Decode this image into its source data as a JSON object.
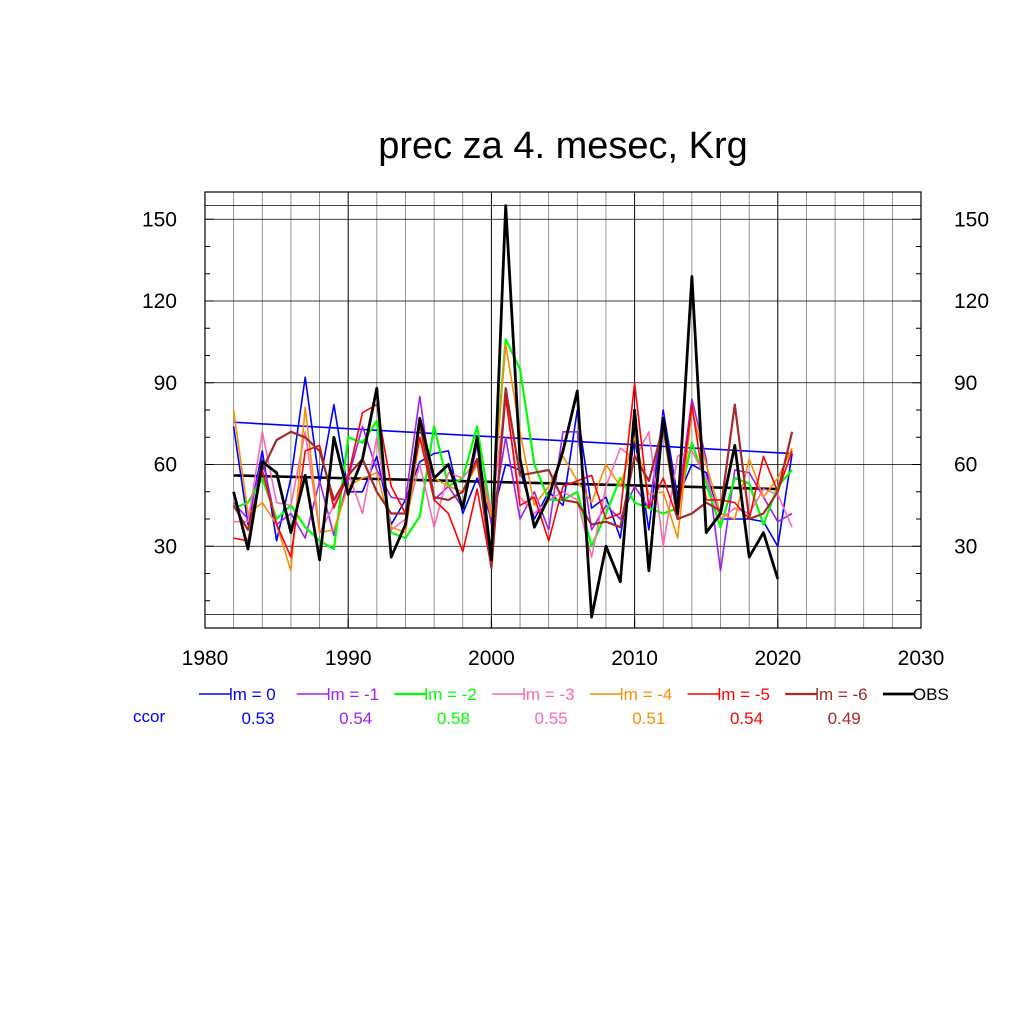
{
  "chart_data": {
    "type": "line",
    "title": "prec za 4. mesec, Krg",
    "xlim": [
      1980,
      2030
    ],
    "ylim": [
      0,
      160
    ],
    "x_ticks": [
      1980,
      1990,
      2000,
      2010,
      2020,
      2030
    ],
    "y_ticks": [
      30,
      60,
      90,
      120,
      150
    ],
    "grid": true,
    "legend_position": "bottom",
    "ccor_label": "ccor",
    "series": [
      {
        "name": "lm = 0",
        "color": "#0000ff",
        "ccor": "0.53",
        "width": 1.6,
        "x": [
          1982,
          1983,
          1984,
          1985,
          1986,
          1987,
          1988,
          1989,
          1990,
          1991,
          1992,
          1993,
          1994,
          1995,
          1996,
          1997,
          1998,
          1999,
          2000,
          2001,
          2002,
          2003,
          2004,
          2005,
          2006,
          2007,
          2008,
          2009,
          2010,
          2011,
          2012,
          2013,
          2014,
          2015,
          2016,
          2017,
          2018,
          2019,
          2020,
          2021
        ],
        "y": [
          74,
          38,
          65,
          32,
          55,
          92,
          53,
          82,
          50,
          50,
          63,
          38,
          47,
          61,
          64,
          65,
          42,
          55,
          40,
          60,
          58,
          40,
          50,
          45,
          80,
          44,
          48,
          33,
          70,
          36,
          80,
          48,
          60,
          57,
          40,
          40,
          40,
          39,
          30,
          64
        ]
      },
      {
        "name": "lm = -1",
        "color": "#a020f0",
        "ccor": "0.54",
        "width": 1.6,
        "x": [
          1982,
          1983,
          1984,
          1985,
          1986,
          1987,
          1988,
          1989,
          1990,
          1991,
          1992,
          1993,
          1994,
          1995,
          1996,
          1997,
          1998,
          1999,
          2000,
          2001,
          2002,
          2003,
          2004,
          2005,
          2006,
          2007,
          2008,
          2009,
          2010,
          2011,
          2012,
          2013,
          2014,
          2015,
          2016,
          2017,
          2018,
          2019,
          2020,
          2021
        ],
        "y": [
          46,
          40,
          62,
          38,
          42,
          33,
          54,
          34,
          55,
          74,
          58,
          48,
          47,
          85,
          47,
          52,
          44,
          67,
          38,
          70,
          40,
          50,
          36,
          72,
          72,
          36,
          45,
          40,
          52,
          44,
          78,
          45,
          84,
          62,
          21,
          58,
          57,
          48,
          39,
          42
        ]
      },
      {
        "name": "lm = -2",
        "color": "#00ff00",
        "ccor": "0.58",
        "width": 2.2,
        "x": [
          1982,
          1983,
          1984,
          1985,
          1986,
          1987,
          1988,
          1989,
          1990,
          1991,
          1992,
          1993,
          1994,
          1995,
          1996,
          1997,
          1998,
          1999,
          2000,
          2001,
          2002,
          2003,
          2004,
          2005,
          2006,
          2007,
          2008,
          2009,
          2010,
          2011,
          2012,
          2013,
          2014,
          2015,
          2016,
          2017,
          2018,
          2019,
          2020,
          2021
        ],
        "y": [
          44,
          46,
          55,
          40,
          45,
          37,
          32,
          29,
          70,
          68,
          76,
          35,
          33,
          41,
          74,
          52,
          55,
          74,
          41,
          106,
          95,
          60,
          47,
          47,
          50,
          30,
          42,
          55,
          46,
          44,
          42,
          44,
          68,
          53,
          37,
          55,
          53,
          38,
          52,
          58
        ]
      },
      {
        "name": "lm = -3",
        "color": "#ff69b4",
        "ccor": "0.55",
        "width": 1.6,
        "x": [
          1982,
          1983,
          1984,
          1985,
          1986,
          1987,
          1988,
          1989,
          1990,
          1991,
          1992,
          1993,
          1994,
          1995,
          1996,
          1997,
          1998,
          1999,
          2000,
          2001,
          2002,
          2003,
          2004,
          2005,
          2006,
          2007,
          2008,
          2009,
          2010,
          2011,
          2012,
          2013,
          2014,
          2015,
          2016,
          2017,
          2018,
          2019,
          2020,
          2021
        ],
        "y": [
          39,
          39,
          72,
          46,
          45,
          72,
          35,
          45,
          57,
          42,
          70,
          36,
          40,
          60,
          37,
          57,
          55,
          62,
          43,
          84,
          48,
          42,
          47,
          50,
          47,
          26,
          52,
          66,
          62,
          72,
          30,
          63,
          65,
          55,
          40,
          44,
          42,
          51,
          49,
          37
        ]
      },
      {
        "name": "lm = -4",
        "color": "#ff8c00",
        "ccor": "0.51",
        "width": 1.6,
        "x": [
          1982,
          1983,
          1984,
          1985,
          1986,
          1987,
          1988,
          1989,
          1990,
          1991,
          1992,
          1993,
          1994,
          1995,
          1996,
          1997,
          1998,
          1999,
          2000,
          2001,
          2002,
          2003,
          2004,
          2005,
          2006,
          2007,
          2008,
          2009,
          2010,
          2011,
          2012,
          2013,
          2014,
          2015,
          2016,
          2017,
          2018,
          2019,
          2020,
          2021
        ],
        "y": [
          80,
          42,
          46,
          38,
          21,
          81,
          35,
          36,
          52,
          55,
          57,
          37,
          35,
          70,
          55,
          52,
          50,
          60,
          41,
          104,
          72,
          45,
          52,
          63,
          54,
          46,
          60,
          52,
          70,
          49,
          50,
          33,
          80,
          60,
          42,
          40,
          62,
          48,
          55,
          66
        ]
      },
      {
        "name": "lm = -5",
        "color": "#ff0000",
        "ccor": "0.54",
        "width": 1.6,
        "x": [
          1982,
          1983,
          1984,
          1985,
          1986,
          1987,
          1988,
          1989,
          1990,
          1991,
          1992,
          1993,
          1994,
          1995,
          1996,
          1997,
          1998,
          1999,
          2000,
          2001,
          2002,
          2003,
          2004,
          2005,
          2006,
          2007,
          2008,
          2009,
          2010,
          2011,
          2012,
          2013,
          2014,
          2015,
          2016,
          2017,
          2018,
          2019,
          2020,
          2021
        ],
        "y": [
          33,
          32,
          58,
          38,
          26,
          65,
          67,
          44,
          56,
          79,
          82,
          52,
          42,
          70,
          47,
          42,
          28,
          51,
          22,
          85,
          45,
          48,
          32,
          52,
          54,
          56,
          40,
          42,
          90,
          44,
          55,
          40,
          82,
          47,
          47,
          46,
          40,
          63,
          50,
          65
        ]
      },
      {
        "name": "lm = -6",
        "color": "#a52a2a",
        "ccor": "0.49",
        "width": 2.2,
        "x": [
          1982,
          1983,
          1984,
          1985,
          1986,
          1987,
          1988,
          1989,
          1990,
          1991,
          1992,
          1993,
          1994,
          1995,
          1996,
          1997,
          1998,
          1999,
          2000,
          2001,
          2002,
          2003,
          2004,
          2005,
          2006,
          2007,
          2008,
          2009,
          2010,
          2011,
          2012,
          2013,
          2014,
          2015,
          2016,
          2017,
          2018,
          2019,
          2020,
          2021
        ],
        "y": [
          45,
          36,
          58,
          69,
          72,
          70,
          65,
          47,
          56,
          62,
          50,
          42,
          42,
          75,
          48,
          47,
          50,
          62,
          22,
          88,
          56,
          57,
          58,
          47,
          46,
          38,
          39,
          37,
          63,
          54,
          74,
          40,
          42,
          46,
          43,
          82,
          40,
          42,
          50,
          72
        ]
      },
      {
        "name": "OBS",
        "color": "#000000",
        "ccor": "",
        "width": 2.8,
        "x": [
          1982,
          1983,
          1984,
          1985,
          1986,
          1987,
          1988,
          1989,
          1990,
          1991,
          1992,
          1993,
          1994,
          1995,
          1996,
          1997,
          1998,
          1999,
          2000,
          2001,
          2002,
          2003,
          2004,
          2005,
          2006,
          2007,
          2008,
          2009,
          2010,
          2011,
          2012,
          2013,
          2014,
          2015,
          2016,
          2017,
          2018,
          2019,
          2020
        ],
        "y": [
          50,
          29,
          61,
          57,
          35,
          56,
          25,
          70,
          49,
          62,
          88,
          26,
          38,
          77,
          55,
          60,
          44,
          70,
          25,
          155,
          62,
          37,
          48,
          65,
          87,
          4,
          30,
          17,
          80,
          21,
          77,
          42,
          129,
          35,
          42,
          67,
          26,
          35,
          18
        ]
      }
    ],
    "trend_lines": [
      {
        "series": "lm = 0",
        "color": "#0000ff",
        "width": 1.6,
        "x": [
          1982,
          2021
        ],
        "y": [
          75.5,
          64
        ]
      },
      {
        "series": "OBS",
        "color": "#000000",
        "width": 2.6,
        "x": [
          1982,
          2020
        ],
        "y": [
          56,
          51
        ]
      }
    ]
  }
}
